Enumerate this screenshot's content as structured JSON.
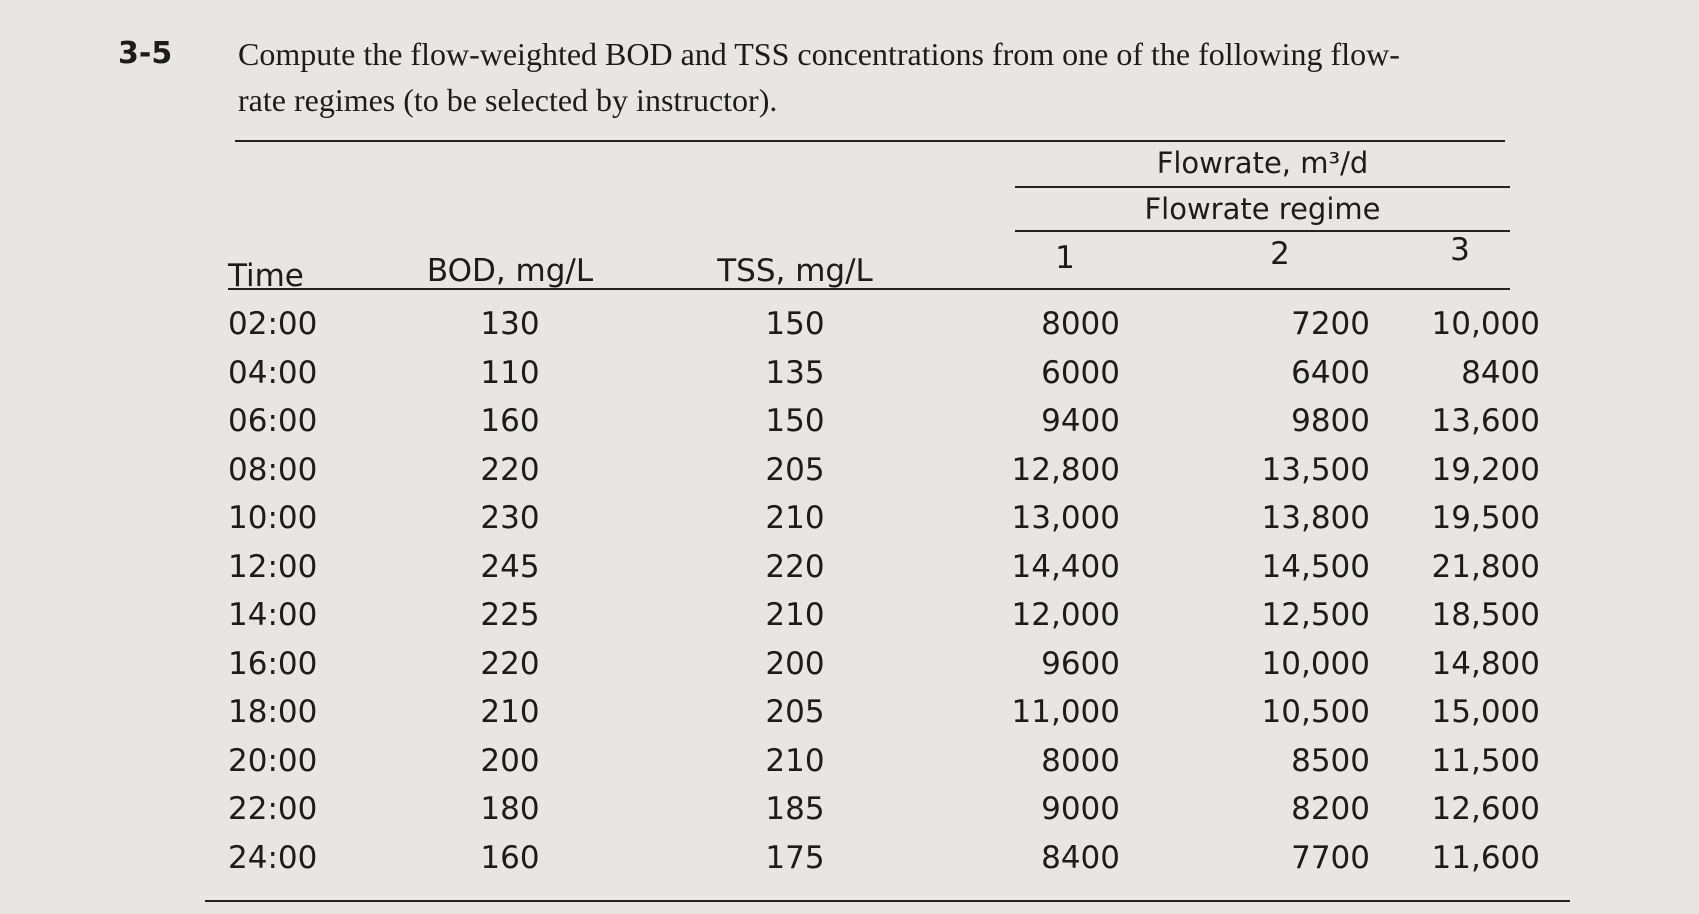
{
  "problem": {
    "number": "3-5",
    "text_line1": "Compute the flow-weighted BOD and TSS concentrations from one of the following flow-",
    "text_line2": "rate regimes (to be selected by instructor)."
  },
  "table": {
    "group_header": "Flowrate, m³/d",
    "subgroup_header": "Flowrate regime",
    "columns": [
      "Time",
      "BOD, mg/L",
      "TSS, mg/L",
      "1",
      "2",
      "3"
    ],
    "rows": [
      [
        "02:00",
        "130",
        "150",
        "8000",
        "7200",
        "10,000"
      ],
      [
        "04:00",
        "110",
        "135",
        "6000",
        "6400",
        "8400"
      ],
      [
        "06:00",
        "160",
        "150",
        "9400",
        "9800",
        "13,600"
      ],
      [
        "08:00",
        "220",
        "205",
        "12,800",
        "13,500",
        "19,200"
      ],
      [
        "10:00",
        "230",
        "210",
        "13,000",
        "13,800",
        "19,500"
      ],
      [
        "12:00",
        "245",
        "220",
        "14,400",
        "14,500",
        "21,800"
      ],
      [
        "14:00",
        "225",
        "210",
        "12,000",
        "12,500",
        "18,500"
      ],
      [
        "16:00",
        "220",
        "200",
        "9600",
        "10,000",
        "14,800"
      ],
      [
        "18:00",
        "210",
        "205",
        "11,000",
        "10,500",
        "15,000"
      ],
      [
        "20:00",
        "200",
        "210",
        "8000",
        "8500",
        "11,500"
      ],
      [
        "22:00",
        "180",
        "185",
        "9000",
        "8200",
        "12,600"
      ],
      [
        "24:00",
        "160",
        "175",
        "8400",
        "7700",
        "11,600"
      ]
    ]
  }
}
